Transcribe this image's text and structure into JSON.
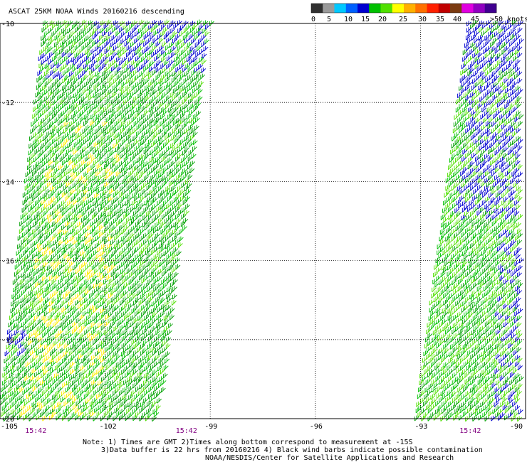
{
  "chart_data": {
    "type": "scatter",
    "title": "ASCAT 25KM NOAA Winds 20160216 descending",
    "x_ticks": [
      "-105",
      "-102",
      "-99",
      "-96",
      "-93",
      "-90"
    ],
    "x_tick_values": [
      -105,
      -102,
      -99,
      -96,
      -93,
      -90
    ],
    "y_ticks": [
      "-10",
      "-12",
      "-14",
      "-16",
      "-18",
      "-20"
    ],
    "y_tick_values": [
      -10,
      -12,
      -14,
      -16,
      -18,
      -20
    ],
    "xlim": [
      -105,
      -90
    ],
    "ylim": [
      -20,
      -10
    ],
    "grid": true,
    "time_labels": [
      {
        "text": "15:42",
        "lon": -104.0
      },
      {
        "text": "15:42",
        "lon": -99.7
      },
      {
        "text": "15:42",
        "lon": -91.6
      }
    ],
    "colorbar": {
      "tick_labels": [
        "0",
        "5",
        "10",
        "15",
        "20",
        "25",
        "30",
        "35",
        "40",
        "45",
        ">50 knots"
      ],
      "colors": [
        "#303030",
        "#9a9a9a",
        "#00c8ff",
        "#0060ff",
        "#0000d0",
        "#00c000",
        "#50e000",
        "#ffff00",
        "#ffb000",
        "#ff7000",
        "#ff2000",
        "#c00000",
        "#7a3a10",
        "#e000e0",
        "#9000c0",
        "#400090"
      ]
    },
    "swaths": [
      {
        "name": "west swath",
        "lat_top": -10,
        "lat_bottom": -20,
        "lon_left_top": -103.7,
        "lon_right_top": -98.9,
        "lon_left_bottom": -105,
        "lon_right_bottom": -100.4
      },
      {
        "name": "east swath",
        "lat_top": -10,
        "lat_bottom": -20,
        "lon_left_top": -91.6,
        "lon_right_top": -90,
        "lon_left_bottom": -93.1,
        "lon_right_bottom": -90
      }
    ],
    "notes": [
      "Note: 1) Times are GMT 2)Times along bottom correspond to measurement at -15S",
      "3)Data buffer is 22 hrs from 20160216 4) Black wind barbs indicate possible contamination",
      "NOAA/NESDIS/Center for Satellite Applications and Research"
    ]
  }
}
